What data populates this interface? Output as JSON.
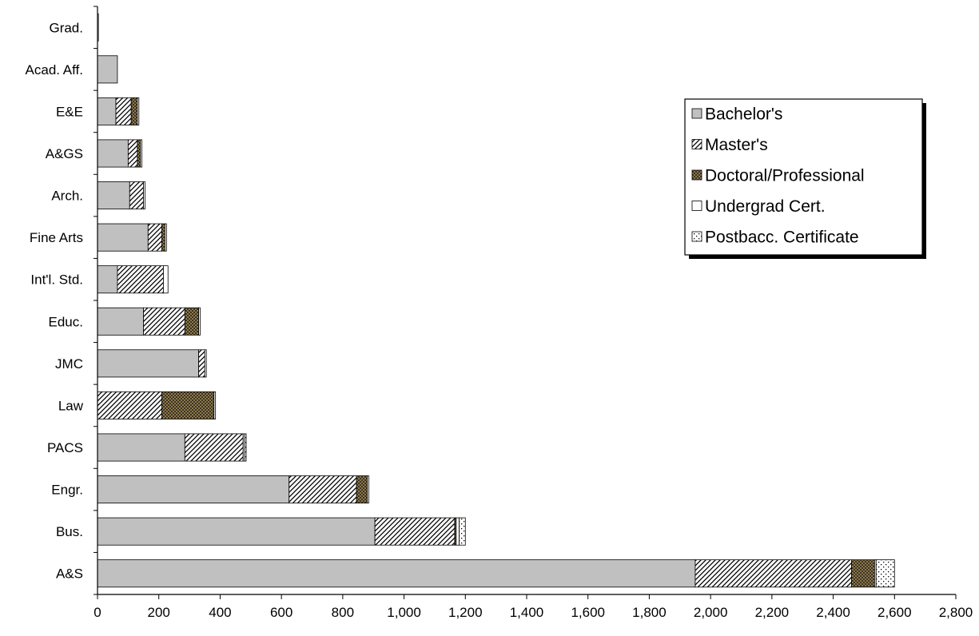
{
  "chart_data": {
    "type": "bar",
    "orientation": "horizontal",
    "stacked": true,
    "categories": [
      "A&S",
      "Bus.",
      "Engr.",
      "PACS",
      "Law",
      "JMC",
      "Educ.",
      "Int'l. Std.",
      "Fine Arts",
      "Arch.",
      "A&GS",
      "E&E",
      "Acad. Aff.",
      "Grad."
    ],
    "series": [
      {
        "name": "Bachelor's",
        "values": [
          1950,
          905,
          625,
          285,
          0,
          330,
          150,
          65,
          165,
          105,
          100,
          60,
          65,
          0
        ]
      },
      {
        "name": "Master's",
        "values": [
          510,
          260,
          220,
          190,
          210,
          20,
          135,
          150,
          45,
          45,
          30,
          50,
          0,
          0
        ]
      },
      {
        "name": "Doctoral/Professional",
        "values": [
          75,
          5,
          35,
          0,
          170,
          0,
          45,
          0,
          10,
          0,
          10,
          20,
          0,
          0
        ]
      },
      {
        "name": "Undergrad Cert.",
        "values": [
          5,
          10,
          5,
          5,
          5,
          5,
          5,
          15,
          5,
          5,
          5,
          5,
          0,
          3
        ]
      },
      {
        "name": "Postbacc. Certificate",
        "values": [
          60,
          20,
          0,
          5,
          0,
          0,
          0,
          0,
          0,
          0,
          0,
          0,
          0,
          0
        ]
      }
    ],
    "xlim": [
      0,
      2800
    ],
    "xticks": [
      "0",
      "200",
      "400",
      "600",
      "800",
      "1,000",
      "1,200",
      "1,400",
      "1,600",
      "1,800",
      "2,000",
      "2,200",
      "2,400",
      "2,600",
      "2,800"
    ],
    "xtick_values": [
      0,
      200,
      400,
      600,
      800,
      1000,
      1200,
      1400,
      1600,
      1800,
      2000,
      2200,
      2400,
      2600,
      2800
    ],
    "grid": false,
    "legend_position": "right",
    "xlabel": "",
    "ylabel": "",
    "title": ""
  }
}
